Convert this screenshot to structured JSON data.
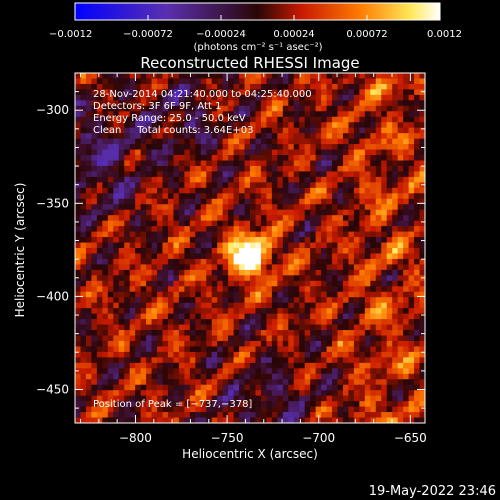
{
  "chart_data": {
    "type": "heatmap",
    "title": "Reconstructed RHESSI Image",
    "xlabel": "Heliocentric X (arcsec)",
    "ylabel": "Heliocentric Y (arcsec)",
    "xlim": [
      -833,
      -642
    ],
    "ylim": [
      -468,
      -280
    ],
    "xticks": [
      -800,
      -750,
      -700,
      -650
    ],
    "yticks": [
      -300,
      -350,
      -400,
      -450
    ],
    "xtick_labels": [
      "−800",
      "−750",
      "−700",
      "−650"
    ],
    "ytick_labels": [
      "−300",
      "−350",
      "−400",
      "−450"
    ],
    "colorbar": {
      "range": [
        -0.0012,
        0.0012
      ],
      "ticks": [
        -0.0012,
        -0.00072,
        -0.00024,
        0.00024,
        0.00072,
        0.0012
      ],
      "tick_labels": [
        "−0.0012",
        "−0.00072",
        "−0.00024",
        "0.00024",
        "0.00072",
        "0.0012"
      ],
      "units": "(photons cm⁻² s⁻¹ asec⁻²)"
    },
    "annotations": [
      "28-Nov-2014 04:21:40.000 to 04:25:40.000",
      "Detectors: 3F 6F 9F, Att 1",
      "Energy Range: 25.0 - 50.0 keV",
      "Clean     Total counts: 3.64E+03"
    ],
    "peak_label": "Position of Peak = [−737,−378]",
    "peak": [
      -737,
      -378
    ]
  },
  "footer": {
    "date": "19-May-2022 23:46"
  }
}
